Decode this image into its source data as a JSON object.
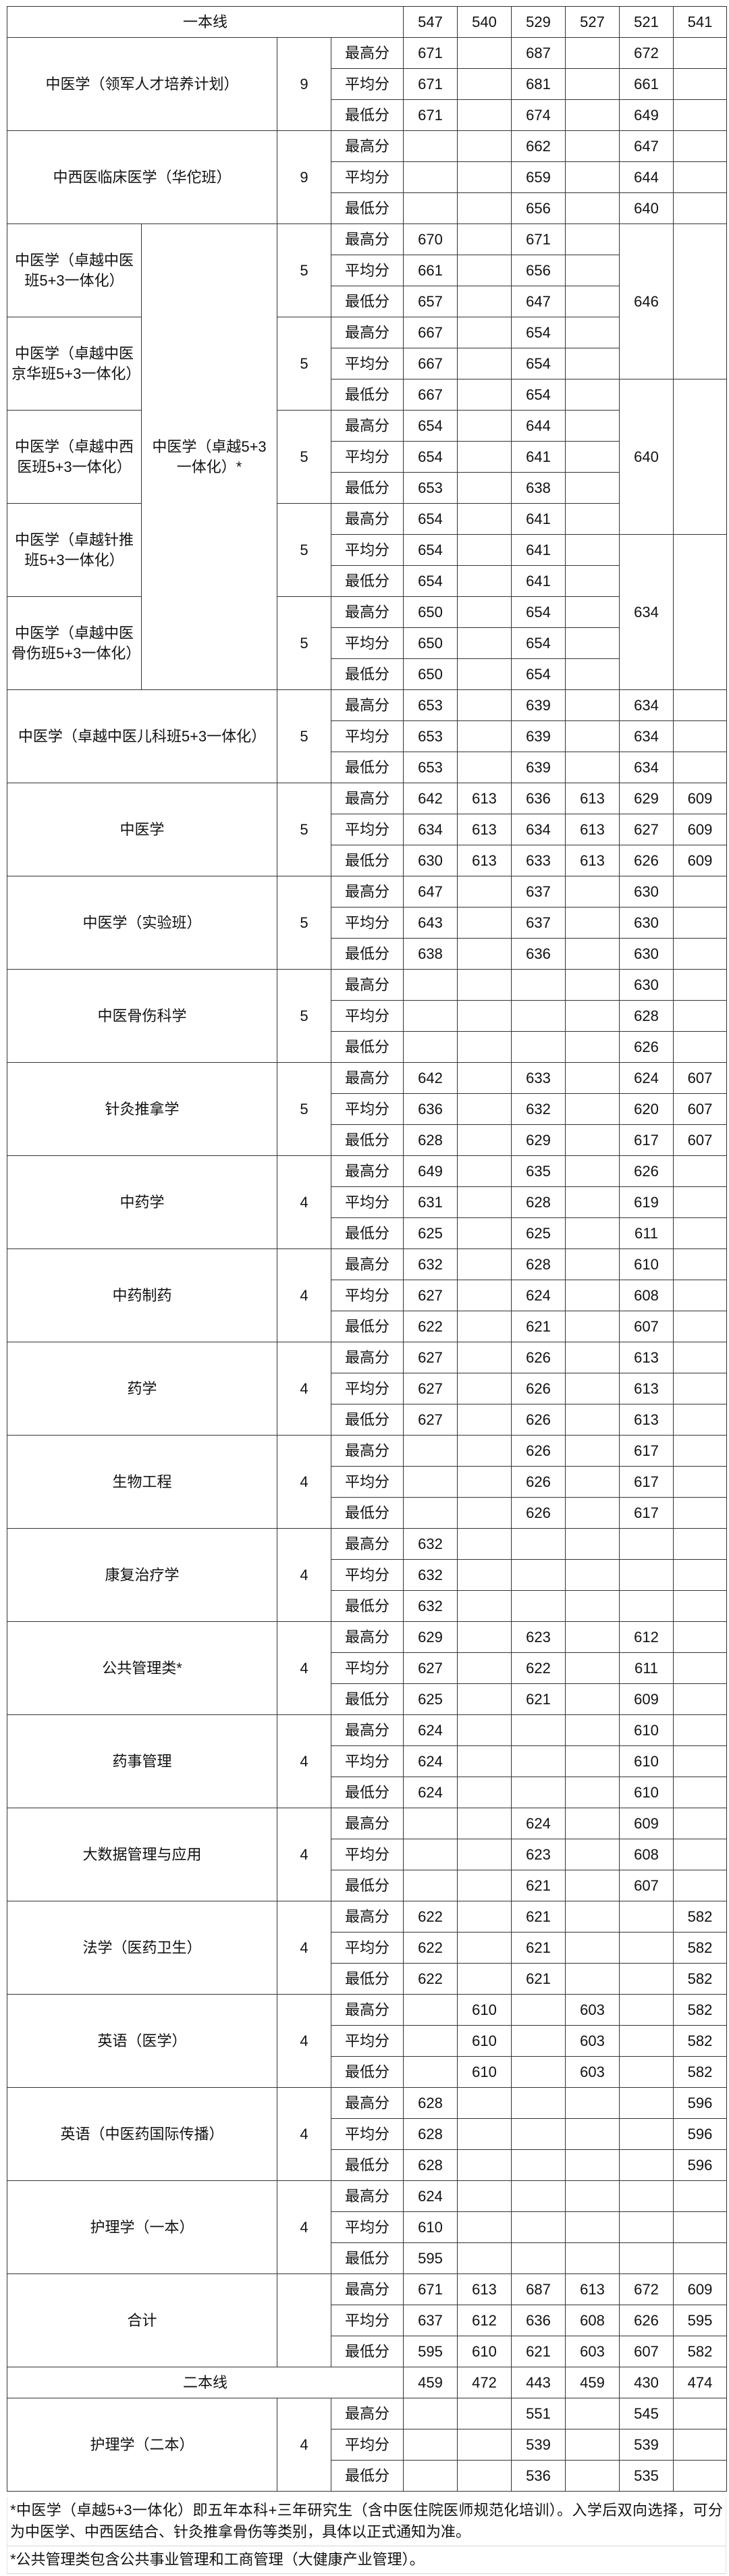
{
  "columns_count": 6,
  "stat_labels": [
    "最高分",
    "平均分",
    "最低分"
  ],
  "line1": {
    "label": "一本线",
    "values": [
      "547",
      "540",
      "529",
      "527",
      "521",
      "541"
    ]
  },
  "groups_before": [
    {
      "name": "中医学（领军人才培养计划）",
      "years": "9",
      "rows": [
        [
          "671",
          "",
          "687",
          "",
          "672",
          ""
        ],
        [
          "671",
          "",
          "681",
          "",
          "661",
          ""
        ],
        [
          "671",
          "",
          "674",
          "",
          "649",
          ""
        ]
      ]
    },
    {
      "name": "中西医临床医学（华佗班）",
      "years": "9",
      "rows": [
        [
          "",
          "",
          "662",
          "",
          "647",
          ""
        ],
        [
          "",
          "",
          "659",
          "",
          "644",
          ""
        ],
        [
          "",
          "",
          "656",
          "",
          "640",
          ""
        ]
      ]
    }
  ],
  "block_5_3": {
    "parent_name": "中医学（卓越5+3一体化）*",
    "merged_521": [
      "646",
      "640",
      "634"
    ],
    "subgroups": [
      {
        "name": "中医学（卓越中医班5+3一体化）",
        "years": "5",
        "col547": [
          "670",
          "661",
          "657"
        ],
        "col529": [
          "671",
          "656",
          "647"
        ]
      },
      {
        "name": "中医学（卓越中医京华班5+3一体化）",
        "years": "5",
        "col547": [
          "667",
          "667",
          "667"
        ],
        "col529": [
          "654",
          "654",
          "654"
        ]
      },
      {
        "name": "中医学（卓越中西医班5+3一体化）",
        "years": "5",
        "col547": [
          "654",
          "654",
          "653"
        ],
        "col529": [
          "644",
          "641",
          "638"
        ]
      },
      {
        "name": "中医学（卓越针推班5+3一体化）",
        "years": "5",
        "col547": [
          "654",
          "654",
          "654"
        ],
        "col529": [
          "641",
          "641",
          "641"
        ]
      },
      {
        "name": "中医学（卓越中医骨伤班5+3一体化）",
        "years": "5",
        "col547": [
          "650",
          "650",
          "650"
        ],
        "col529": [
          "654",
          "654",
          "654"
        ]
      }
    ]
  },
  "groups_after": [
    {
      "name": "中医学（卓越中医儿科班5+3一体化）",
      "years": "5",
      "rows": [
        [
          "653",
          "",
          "639",
          "",
          "634",
          ""
        ],
        [
          "653",
          "",
          "639",
          "",
          "634",
          ""
        ],
        [
          "653",
          "",
          "639",
          "",
          "634",
          ""
        ]
      ]
    },
    {
      "name": "中医学",
      "years": "5",
      "rows": [
        [
          "642",
          "613",
          "636",
          "613",
          "629",
          "609"
        ],
        [
          "634",
          "613",
          "634",
          "613",
          "627",
          "609"
        ],
        [
          "630",
          "613",
          "633",
          "613",
          "626",
          "609"
        ]
      ]
    },
    {
      "name": "中医学（实验班）",
      "years": "5",
      "rows": [
        [
          "647",
          "",
          "637",
          "",
          "630",
          ""
        ],
        [
          "643",
          "",
          "637",
          "",
          "630",
          ""
        ],
        [
          "638",
          "",
          "636",
          "",
          "630",
          ""
        ]
      ]
    },
    {
      "name": "中医骨伤科学",
      "years": "5",
      "rows": [
        [
          "",
          "",
          "",
          "",
          "630",
          ""
        ],
        [
          "",
          "",
          "",
          "",
          "628",
          ""
        ],
        [
          "",
          "",
          "",
          "",
          "626",
          ""
        ]
      ]
    },
    {
      "name": "针灸推拿学",
      "years": "5",
      "rows": [
        [
          "642",
          "",
          "633",
          "",
          "624",
          "607"
        ],
        [
          "636",
          "",
          "632",
          "",
          "620",
          "607"
        ],
        [
          "628",
          "",
          "629",
          "",
          "617",
          "607"
        ]
      ]
    },
    {
      "name": "中药学",
      "years": "4",
      "rows": [
        [
          "649",
          "",
          "635",
          "",
          "626",
          ""
        ],
        [
          "631",
          "",
          "628",
          "",
          "619",
          ""
        ],
        [
          "625",
          "",
          "625",
          "",
          "611",
          ""
        ]
      ]
    },
    {
      "name": "中药制药",
      "years": "4",
      "rows": [
        [
          "632",
          "",
          "628",
          "",
          "610",
          ""
        ],
        [
          "627",
          "",
          "624",
          "",
          "608",
          ""
        ],
        [
          "622",
          "",
          "621",
          "",
          "607",
          ""
        ]
      ]
    },
    {
      "name": "药学",
      "years": "4",
      "rows": [
        [
          "627",
          "",
          "626",
          "",
          "613",
          ""
        ],
        [
          "627",
          "",
          "626",
          "",
          "613",
          ""
        ],
        [
          "627",
          "",
          "626",
          "",
          "613",
          ""
        ]
      ]
    },
    {
      "name": "生物工程",
      "years": "4",
      "rows": [
        [
          "",
          "",
          "626",
          "",
          "617",
          ""
        ],
        [
          "",
          "",
          "626",
          "",
          "617",
          ""
        ],
        [
          "",
          "",
          "626",
          "",
          "617",
          ""
        ]
      ]
    },
    {
      "name": "康复治疗学",
      "years": "4",
      "rows": [
        [
          "632",
          "",
          "",
          "",
          "",
          ""
        ],
        [
          "632",
          "",
          "",
          "",
          "",
          ""
        ],
        [
          "632",
          "",
          "",
          "",
          "",
          ""
        ]
      ]
    },
    {
      "name": "公共管理类*",
      "years": "4",
      "rows": [
        [
          "629",
          "",
          "623",
          "",
          "612",
          ""
        ],
        [
          "627",
          "",
          "622",
          "",
          "611",
          ""
        ],
        [
          "625",
          "",
          "621",
          "",
          "609",
          ""
        ]
      ]
    },
    {
      "name": "药事管理",
      "years": "4",
      "rows": [
        [
          "624",
          "",
          "",
          "",
          "610",
          ""
        ],
        [
          "624",
          "",
          "",
          "",
          "610",
          ""
        ],
        [
          "624",
          "",
          "",
          "",
          "610",
          ""
        ]
      ]
    },
    {
      "name": "大数据管理与应用",
      "years": "4",
      "rows": [
        [
          "",
          "",
          "624",
          "",
          "609",
          ""
        ],
        [
          "",
          "",
          "623",
          "",
          "608",
          ""
        ],
        [
          "",
          "",
          "621",
          "",
          "607",
          ""
        ]
      ]
    },
    {
      "name": "法学（医药卫生）",
      "years": "4",
      "rows": [
        [
          "622",
          "",
          "621",
          "",
          "",
          "582"
        ],
        [
          "622",
          "",
          "621",
          "",
          "",
          "582"
        ],
        [
          "622",
          "",
          "621",
          "",
          "",
          "582"
        ]
      ]
    },
    {
      "name": "英语（医学）",
      "years": "4",
      "rows": [
        [
          "",
          "610",
          "",
          "603",
          "",
          "582"
        ],
        [
          "",
          "610",
          "",
          "603",
          "",
          "582"
        ],
        [
          "",
          "610",
          "",
          "603",
          "",
          "582"
        ]
      ]
    },
    {
      "name": "英语（中医药国际传播）",
      "years": "4",
      "rows": [
        [
          "628",
          "",
          "",
          "",
          "",
          "596"
        ],
        [
          "628",
          "",
          "",
          "",
          "",
          "596"
        ],
        [
          "628",
          "",
          "",
          "",
          "",
          "596"
        ]
      ]
    },
    {
      "name": "护理学（一本）",
      "years": "4",
      "rows": [
        [
          "624",
          "",
          "",
          "",
          "",
          ""
        ],
        [
          "610",
          "",
          "",
          "",
          "",
          ""
        ],
        [
          "595",
          "",
          "",
          "",
          "",
          ""
        ]
      ]
    },
    {
      "name": "合计",
      "years": "",
      "rows": [
        [
          "671",
          "613",
          "687",
          "613",
          "672",
          "609"
        ],
        [
          "637",
          "612",
          "636",
          "608",
          "626",
          "595"
        ],
        [
          "595",
          "610",
          "621",
          "603",
          "607",
          "582"
        ]
      ]
    }
  ],
  "line2": {
    "label": "二本线",
    "values": [
      "459",
      "472",
      "443",
      "459",
      "430",
      "474"
    ]
  },
  "groups_line2": [
    {
      "name": "护理学（二本）",
      "years": "4",
      "rows": [
        [
          "",
          "",
          "551",
          "",
          "545",
          ""
        ],
        [
          "",
          "",
          "539",
          "",
          "539",
          ""
        ],
        [
          "",
          "",
          "536",
          "",
          "535",
          ""
        ]
      ]
    }
  ],
  "notes": [
    "*中医学（卓越5+3一体化）即五年本科+三年研究生（含中医住院医师规范化培训）。入学后双向选择，可分为中医学、中西医结合、针灸推拿骨伤等类别，具体以正式通知为准。",
    "*公共管理类包含公共事业管理和工商管理（大健康产业管理）。"
  ]
}
